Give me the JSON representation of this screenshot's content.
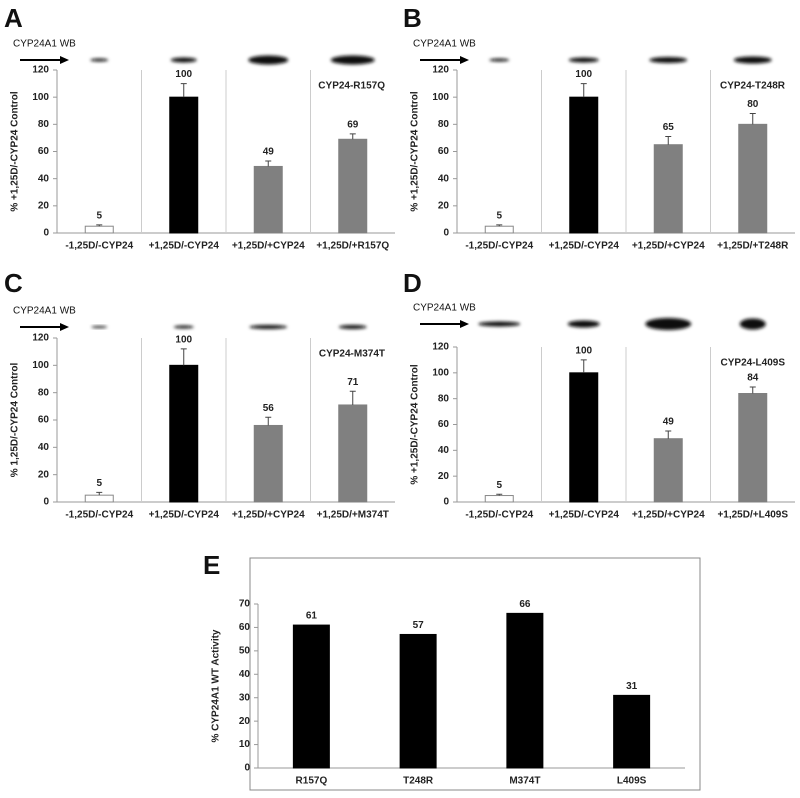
{
  "chart_data": [
    {
      "type": "bar",
      "panel": "A",
      "blot_label": "CYP24A1 WB",
      "annotation": "CYP24-R157Q",
      "y_label": "% +1,25D/-CYP24 Control",
      "categories": [
        "-1,25D/-CYP24",
        "+1,25D/-CYP24",
        "+1,25D/+CYP24",
        "+1,25D/+R157Q"
      ],
      "values": [
        5,
        100,
        49,
        69
      ],
      "errors": [
        1,
        10,
        4,
        4
      ],
      "colors": [
        "#ffffff",
        "#000000",
        "#808080",
        "#808080"
      ],
      "ylim": [
        0,
        120
      ],
      "yticks": [
        0,
        20,
        40,
        60,
        80,
        100,
        120
      ]
    },
    {
      "type": "bar",
      "panel": "B",
      "blot_label": "CYP24A1 WB",
      "annotation": "CYP24-T248R",
      "y_label": "% +1,25D/-CYP24 Control",
      "categories": [
        "-1,25D/-CYP24",
        "+1,25D/-CYP24",
        "+1,25D/+CYP24",
        "+1,25D/+T248R"
      ],
      "values": [
        5,
        100,
        65,
        80
      ],
      "errors": [
        1,
        10,
        6,
        8
      ],
      "colors": [
        "#ffffff",
        "#000000",
        "#808080",
        "#808080"
      ],
      "ylim": [
        0,
        120
      ],
      "yticks": [
        0,
        20,
        40,
        60,
        80,
        100,
        120
      ]
    },
    {
      "type": "bar",
      "panel": "C",
      "blot_label": "CYP24A1 WB",
      "annotation": "CYP24-M374T",
      "y_label": "% 1,25D/-CYP24 Control",
      "categories": [
        "-1,25D/-CYP24",
        "+1,25D/-CYP24",
        "+1,25D/+CYP24",
        "+1,25D/+M374T"
      ],
      "values": [
        5,
        100,
        56,
        71
      ],
      "errors": [
        2,
        12,
        6,
        10
      ],
      "colors": [
        "#ffffff",
        "#000000",
        "#808080",
        "#808080"
      ],
      "ylim": [
        0,
        120
      ],
      "yticks": [
        0,
        20,
        40,
        60,
        80,
        100,
        120
      ]
    },
    {
      "type": "bar",
      "panel": "D",
      "blot_label": "CYP24A1 WB",
      "annotation": "CYP24-L409S",
      "y_label": "% +1,25D/-CYP24 Control",
      "categories": [
        "-1,25D/-CYP24",
        "+1,25D/-CYP24",
        "+1,25D/+CYP24",
        "+1,25D/+L409S"
      ],
      "values": [
        5,
        100,
        49,
        84
      ],
      "errors": [
        1,
        10,
        6,
        5
      ],
      "colors": [
        "#ffffff",
        "#000000",
        "#808080",
        "#808080"
      ],
      "ylim": [
        0,
        120
      ],
      "yticks": [
        0,
        20,
        40,
        60,
        80,
        100,
        120
      ]
    },
    {
      "type": "bar",
      "panel": "E",
      "y_label": "% CYP24A1 WT Activity",
      "categories": [
        "R157Q",
        "T248R",
        "M374T",
        "L409S"
      ],
      "values": [
        61,
        57,
        66,
        31
      ],
      "colors": [
        "#000000",
        "#000000",
        "#000000",
        "#000000"
      ],
      "ylim": [
        0,
        70
      ],
      "yticks": [
        0,
        10,
        20,
        30,
        40,
        50,
        60,
        70
      ]
    }
  ]
}
